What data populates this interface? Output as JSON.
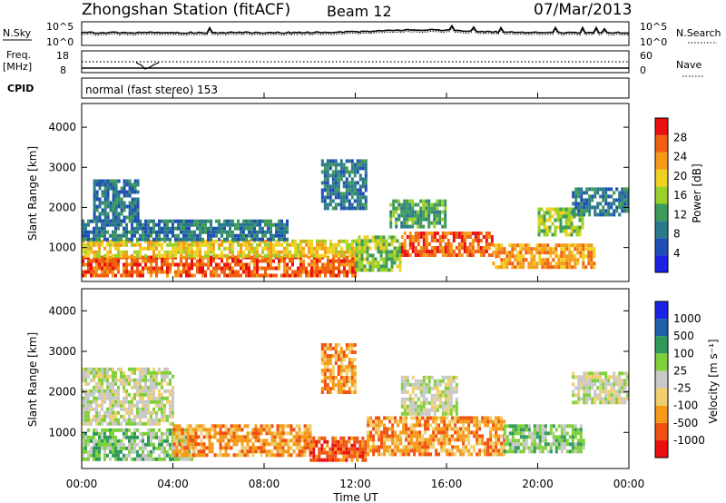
{
  "header": {
    "title": "Zhongshan Station (fitACF)",
    "beam": "Beam 12",
    "date": "07/Mar/2013"
  },
  "top_panels": {
    "nsky_label": "N.Sky",
    "nsearch_label": "N.Search",
    "nsky_left_ticks": [
      "10^5",
      "10^0"
    ],
    "nsky_right_ticks": [
      "10^5",
      "10^0"
    ],
    "freq_label_1": "Freq.",
    "freq_label_2": "[MHz]",
    "freq_ticks": [
      "18",
      "8"
    ],
    "nave_label": "Nave",
    "nave_ticks": [
      "60",
      "0"
    ],
    "cpid_label": "CPID",
    "cpid_text": "normal (fast stereo) 153"
  },
  "x_axis": {
    "label": "Time UT",
    "ticks": [
      "00:00",
      "04:00",
      "08:00",
      "12:00",
      "16:00",
      "20:00",
      "00:00"
    ]
  },
  "colors": {
    "power": [
      "#1a22e6",
      "#1f4fb5",
      "#2a7a8a",
      "#3d9a5a",
      "#9ad02a",
      "#f0d020",
      "#f59a18",
      "#f06010",
      "#e81010"
    ],
    "velocity": [
      "#e81010",
      "#f05010",
      "#f59a18",
      "#f0cf70",
      "#c8c8c8",
      "#7fcf3a",
      "#2e9a5a",
      "#2060a8",
      "#1a22e6"
    ]
  },
  "chart_data": [
    {
      "type": "heatmap",
      "quantity": "power",
      "ylabel": "Slant Range [km]",
      "xlabel": "Time UT",
      "y_ticks": [
        "1000",
        "2000",
        "3000",
        "4000"
      ],
      "ylim": [
        200,
        4500
      ],
      "xlim_hours": [
        0,
        24
      ],
      "colorbar_label": "Power [dB]",
      "colorbar_ticks": [
        "4",
        "8",
        "12",
        "16",
        "20",
        "24",
        "28"
      ],
      "colorbar_range": [
        0,
        30
      ],
      "regions": [
        {
          "t_start": 0.0,
          "t_end": 12.0,
          "r_low": 300,
          "r_high": 800,
          "value": 28
        },
        {
          "t_start": 0.0,
          "t_end": 12.0,
          "r_low": 800,
          "r_high": 1200,
          "value": 18
        },
        {
          "t_start": 0.0,
          "t_end": 9.0,
          "r_low": 1200,
          "r_high": 1700,
          "value": 8
        },
        {
          "t_start": 0.5,
          "t_end": 2.5,
          "r_low": 1700,
          "r_high": 2700,
          "value": 6
        },
        {
          "t_start": 10.5,
          "t_end": 12.5,
          "r_low": 2000,
          "r_high": 3200,
          "value": 6
        },
        {
          "t_start": 12.0,
          "t_end": 14.0,
          "r_low": 400,
          "r_high": 1300,
          "value": 14
        },
        {
          "t_start": 14.0,
          "t_end": 18.0,
          "r_low": 800,
          "r_high": 1400,
          "value": 26
        },
        {
          "t_start": 13.5,
          "t_end": 16.0,
          "r_low": 1500,
          "r_high": 2200,
          "value": 12
        },
        {
          "t_start": 18.0,
          "t_end": 22.5,
          "r_low": 500,
          "r_high": 1100,
          "value": 24
        },
        {
          "t_start": 20.0,
          "t_end": 22.0,
          "r_low": 1300,
          "r_high": 2000,
          "value": 14
        },
        {
          "t_start": 21.5,
          "t_end": 24.0,
          "r_low": 1800,
          "r_high": 2500,
          "value": 8
        }
      ]
    },
    {
      "type": "heatmap",
      "quantity": "velocity",
      "ylabel": "Slant Range [km]",
      "xlabel": "Time UT",
      "y_ticks": [
        "1000",
        "2000",
        "3000",
        "4000"
      ],
      "ylim": [
        200,
        4500
      ],
      "xlim_hours": [
        0,
        24
      ],
      "colorbar_label": "Velocity [m s⁻¹]",
      "colorbar_ticks": [
        "-1000",
        "-500",
        "-100",
        "-25",
        "25",
        "100",
        "500",
        "1000"
      ],
      "regions": [
        {
          "t_start": 0.0,
          "t_end": 5.0,
          "r_low": 300,
          "r_high": 1100,
          "value": 100
        },
        {
          "t_start": 4.0,
          "t_end": 10.0,
          "r_low": 400,
          "r_high": 1200,
          "value": -100
        },
        {
          "t_start": 10.0,
          "t_end": 12.5,
          "r_low": 300,
          "r_high": 900,
          "value": -500
        },
        {
          "t_start": 0.0,
          "t_end": 4.0,
          "r_low": 1200,
          "r_high": 2600,
          "value": 0
        },
        {
          "t_start": 12.5,
          "t_end": 18.5,
          "r_low": 500,
          "r_high": 1400,
          "value": -100
        },
        {
          "t_start": 14.0,
          "t_end": 16.5,
          "r_low": 1500,
          "r_high": 2400,
          "value": 0
        },
        {
          "t_start": 18.5,
          "t_end": 22.0,
          "r_low": 500,
          "r_high": 1200,
          "value": 100
        },
        {
          "t_start": 21.5,
          "t_end": 24.0,
          "r_low": 1700,
          "r_high": 2500,
          "value": 0
        },
        {
          "t_start": 10.5,
          "t_end": 12.0,
          "r_low": 2000,
          "r_high": 3200,
          "value": -100
        }
      ]
    }
  ]
}
